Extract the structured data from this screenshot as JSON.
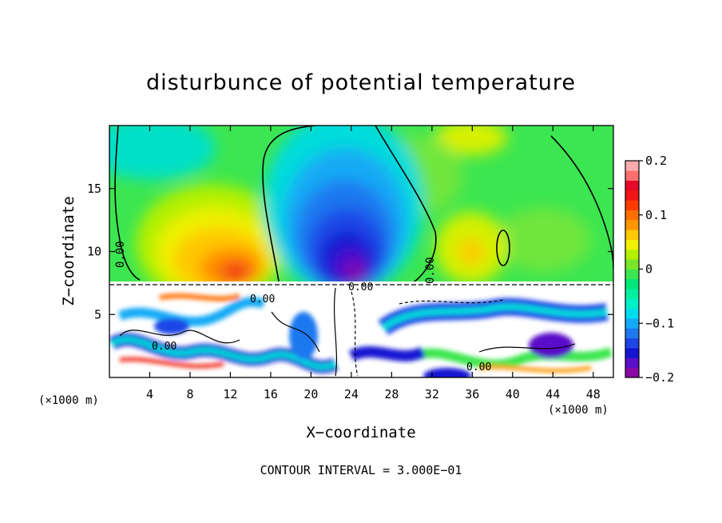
{
  "chart_data": {
    "type": "heatmap",
    "title": "disturbunce of potential temperature",
    "xlabel": "X−coordinate",
    "ylabel": "Z−coordinate",
    "x_unit_label": "(×1000 m)",
    "z_unit_label": "(×1000 m)",
    "xlim": [
      0,
      50
    ],
    "zlim": [
      0,
      20
    ],
    "x_ticks": [
      4,
      8,
      12,
      16,
      20,
      24,
      28,
      32,
      36,
      40,
      44,
      48
    ],
    "x_tick_labels": [
      "4",
      "8",
      "12",
      "16",
      "20",
      "24",
      "28",
      "32",
      "36",
      "40",
      "44",
      "48"
    ],
    "z_ticks": [
      5,
      10,
      15
    ],
    "z_tick_labels": [
      "5",
      "10",
      "15"
    ],
    "colorbar": {
      "range": [
        -0.2,
        0.2
      ],
      "ticks": [
        0.2,
        0.1,
        0,
        -0.1,
        -0.2
      ],
      "tick_labels": [
        "0.2",
        "0.1",
        "0",
        "−0.1",
        "−0.2"
      ],
      "colors": [
        "#8b0aa5",
        "#5a10c8",
        "#1414d2",
        "#1e46e6",
        "#1e78f0",
        "#14aaf5",
        "#00dcf0",
        "#00f0c8",
        "#00f0a0",
        "#00e678",
        "#3ce650",
        "#78e628",
        "#b4f000",
        "#f0f000",
        "#ffc800",
        "#ff9600",
        "#ff6e00",
        "#ff3c00",
        "#f01414",
        "#e60a28",
        "#ff6e6e",
        "#ffaaaa"
      ]
    },
    "contour_labels": [
      "0.00",
      "0.00",
      "0.00",
      "0.00",
      "0.00",
      "0.00",
      "0.00",
      "0.00"
    ],
    "features": [
      {
        "kind": "warm_anomaly",
        "x": 11,
        "z": 11,
        "value": 0.13
      },
      {
        "kind": "cold_anomaly",
        "x": 24,
        "z": 10.5,
        "value": -0.2
      },
      {
        "kind": "warm_anomaly",
        "x": 35,
        "z": 10,
        "value": 0.08
      },
      {
        "kind": "turbulent_layer",
        "z_top": 7.3
      }
    ],
    "footer": "CONTOUR INTERVAL =  3.000E−01"
  }
}
